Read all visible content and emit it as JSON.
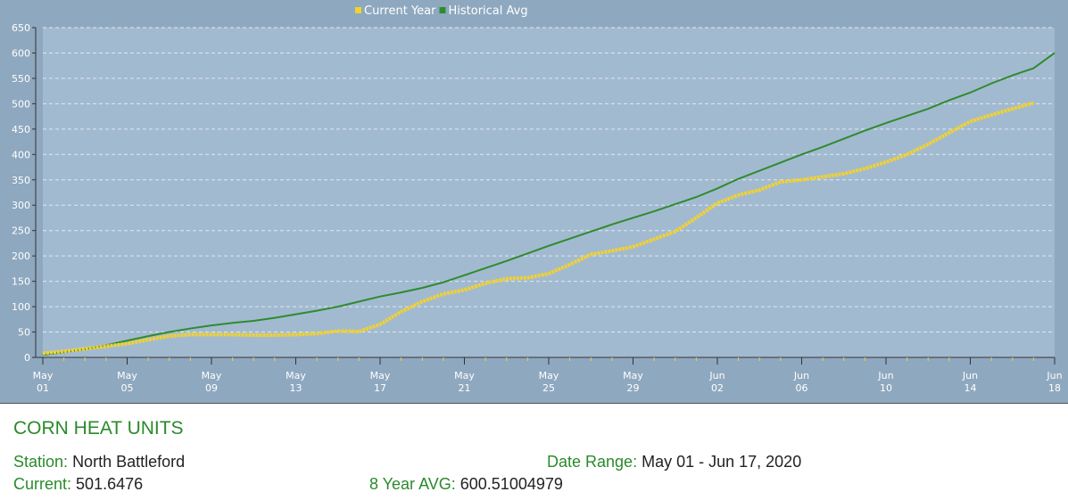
{
  "chart_data": {
    "type": "line",
    "categories": [
      "May 01",
      null,
      null,
      null,
      "May 05",
      null,
      null,
      null,
      "May 09",
      null,
      null,
      null,
      "May 13",
      null,
      null,
      null,
      "May 17",
      null,
      null,
      null,
      "May 21",
      null,
      null,
      null,
      "May 25",
      null,
      null,
      null,
      "May 29",
      null,
      null,
      null,
      "Jun 02",
      null,
      null,
      null,
      "Jun 06",
      null,
      null,
      null,
      "Jun 10",
      null,
      null,
      null,
      "Jun 14",
      null,
      null,
      null,
      "Jun 18"
    ],
    "series": [
      {
        "name": "Current Year",
        "color": "#f2d22e",
        "values": [
          8,
          12,
          17,
          22,
          27,
          35,
          42,
          45,
          45,
          45,
          44,
          44,
          45,
          47,
          52,
          51,
          65,
          90,
          110,
          125,
          133,
          146,
          155,
          157,
          165,
          183,
          203,
          210,
          218,
          233,
          248,
          275,
          304,
          320,
          330,
          346,
          350,
          356,
          362,
          372,
          385,
          400,
          420,
          443,
          465,
          478,
          490,
          501.6476,
          null
        ]
      },
      {
        "name": "Historical Avg",
        "color": "#2e8b2e",
        "values": [
          5,
          10,
          16,
          24,
          33,
          42,
          50,
          57,
          63,
          68,
          72,
          78,
          85,
          92,
          100,
          110,
          120,
          128,
          137,
          148,
          162,
          176,
          190,
          205,
          220,
          234,
          248,
          262,
          275,
          288,
          302,
          316,
          333,
          352,
          368,
          384,
          400,
          415,
          431,
          447,
          462,
          476,
          490,
          507,
          522,
          540,
          556,
          570,
          600
        ]
      }
    ],
    "ylim": [
      0,
      650
    ],
    "yticks": [
      0,
      50,
      100,
      150,
      200,
      250,
      300,
      350,
      400,
      450,
      500,
      550,
      600,
      650
    ],
    "grid": true
  },
  "info": {
    "title": "CORN HEAT UNITS",
    "station": {
      "label": "Station:",
      "value": "North Battleford"
    },
    "date_range": {
      "label": "Date Range:",
      "value": "May 01 - Jun 17, 2020"
    },
    "current": {
      "label": "Current:",
      "value": "501.6476"
    },
    "avg": {
      "label": "8 Year AVG:",
      "value": "600.51004979"
    }
  }
}
